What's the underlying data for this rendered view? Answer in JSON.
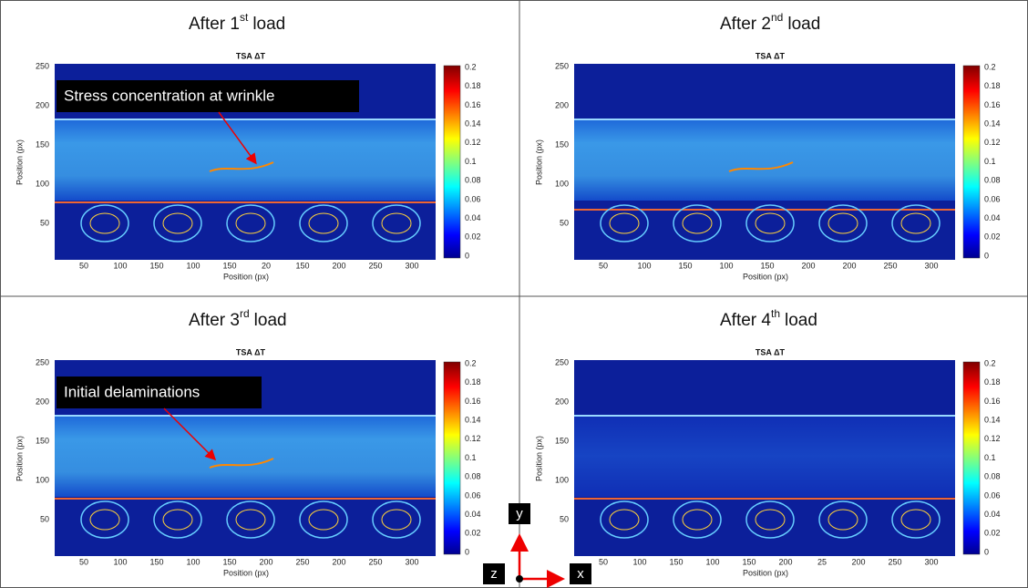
{
  "panels": [
    {
      "title": {
        "pre": "After 1",
        "sup": "st",
        "post": "load"
      },
      "plot_title": "TSA ΔT",
      "x_label": "Position (px)",
      "y_label": "Position (px)",
      "x_ticks": [
        "50",
        "100",
        "150",
        "100",
        "150",
        "20",
        "150",
        "200",
        "250",
        "300"
      ],
      "y_ticks": [
        250,
        200,
        150,
        100,
        50
      ],
      "colorbar_ticks": [
        0.2,
        0.18,
        0.16,
        0.14,
        0.12,
        0.1,
        0.08,
        0.06,
        0.04,
        0.02,
        0
      ],
      "annotation": "Stress concentration at wrinkle"
    },
    {
      "title": {
        "pre": "After 2",
        "sup": "nd",
        "post": "load"
      },
      "plot_title": "TSA ΔT",
      "x_label": "Position (px)",
      "y_label": "Position (px)",
      "x_ticks": [
        "50",
        "100",
        "150",
        "100",
        "150",
        "200",
        "200",
        "250",
        "300"
      ],
      "y_ticks": [
        250,
        200,
        150,
        100,
        50
      ],
      "colorbar_ticks": [
        0.2,
        0.18,
        0.16,
        0.14,
        0.12,
        0.1,
        0.08,
        0.06,
        0.04,
        0.02,
        0
      ]
    },
    {
      "title": {
        "pre": "After 3",
        "sup": "rd",
        "post": "load"
      },
      "plot_title": "TSA ΔT",
      "x_label": "Position (px)",
      "y_label": "Position (px)",
      "x_ticks": [
        "50",
        "100",
        "150",
        "100",
        "150",
        "200",
        "250",
        "200",
        "250",
        "300"
      ],
      "y_ticks": [
        250,
        200,
        150,
        100,
        50
      ],
      "colorbar_ticks": [
        0.2,
        0.18,
        0.16,
        0.14,
        0.12,
        0.1,
        0.08,
        0.06,
        0.04,
        0.02,
        0
      ],
      "annotation": "Initial delaminations"
    },
    {
      "title": {
        "pre": "After 4",
        "sup": "th",
        "post": "load"
      },
      "plot_title": "TSA ΔT",
      "x_label": "Position (px)",
      "y_label": "Position (px)",
      "x_ticks": [
        "50",
        "100",
        "150",
        "100",
        "150",
        "200",
        "25",
        "200",
        "250",
        "300"
      ],
      "y_ticks": [
        250,
        200,
        150,
        100,
        50
      ],
      "colorbar_ticks": [
        0.2,
        0.18,
        0.16,
        0.14,
        0.12,
        0.1,
        0.08,
        0.06,
        0.04,
        0.02,
        0
      ]
    }
  ],
  "axes_triad": {
    "x": "x",
    "y": "y",
    "z": "z"
  }
}
